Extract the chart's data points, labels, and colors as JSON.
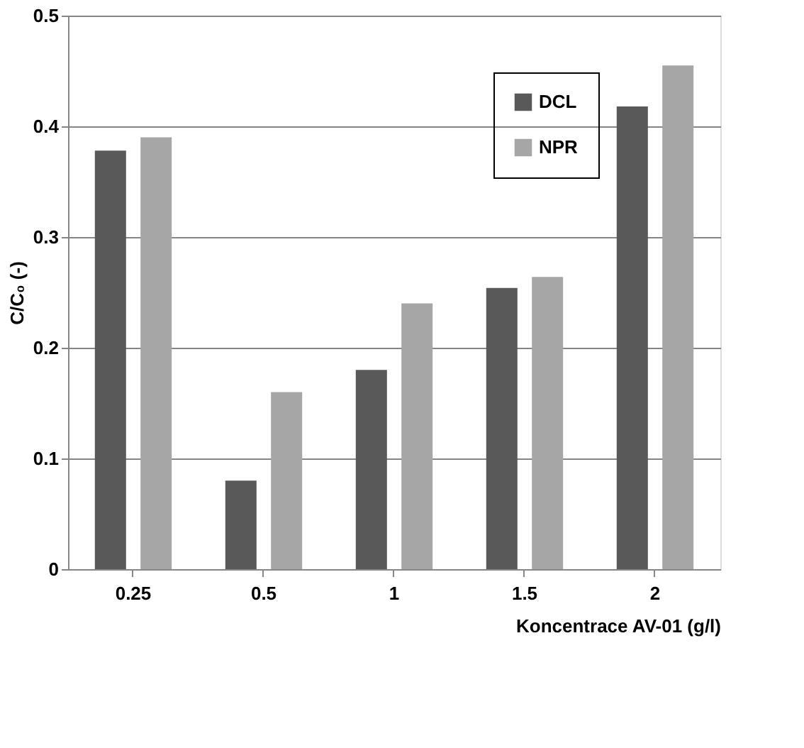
{
  "chart_data": {
    "type": "bar",
    "xlabel": "Koncentrace AV-01 (g/l)",
    "ylabel": "C/C₀ (-)",
    "categories": [
      "0.25",
      "0.5",
      "1",
      "1.5",
      "2"
    ],
    "series": [
      {
        "name": "DCL",
        "color": "#595959",
        "values": [
          0.378,
          0.08,
          0.18,
          0.254,
          0.418
        ]
      },
      {
        "name": "NPR",
        "color": "#a6a6a6",
        "values": [
          0.39,
          0.16,
          0.24,
          0.264,
          0.455
        ]
      }
    ],
    "ylim": [
      0,
      0.5
    ],
    "yticks": [
      0,
      0.1,
      0.2,
      0.3,
      0.4,
      0.5
    ],
    "grid": "y",
    "legend": "top right"
  }
}
